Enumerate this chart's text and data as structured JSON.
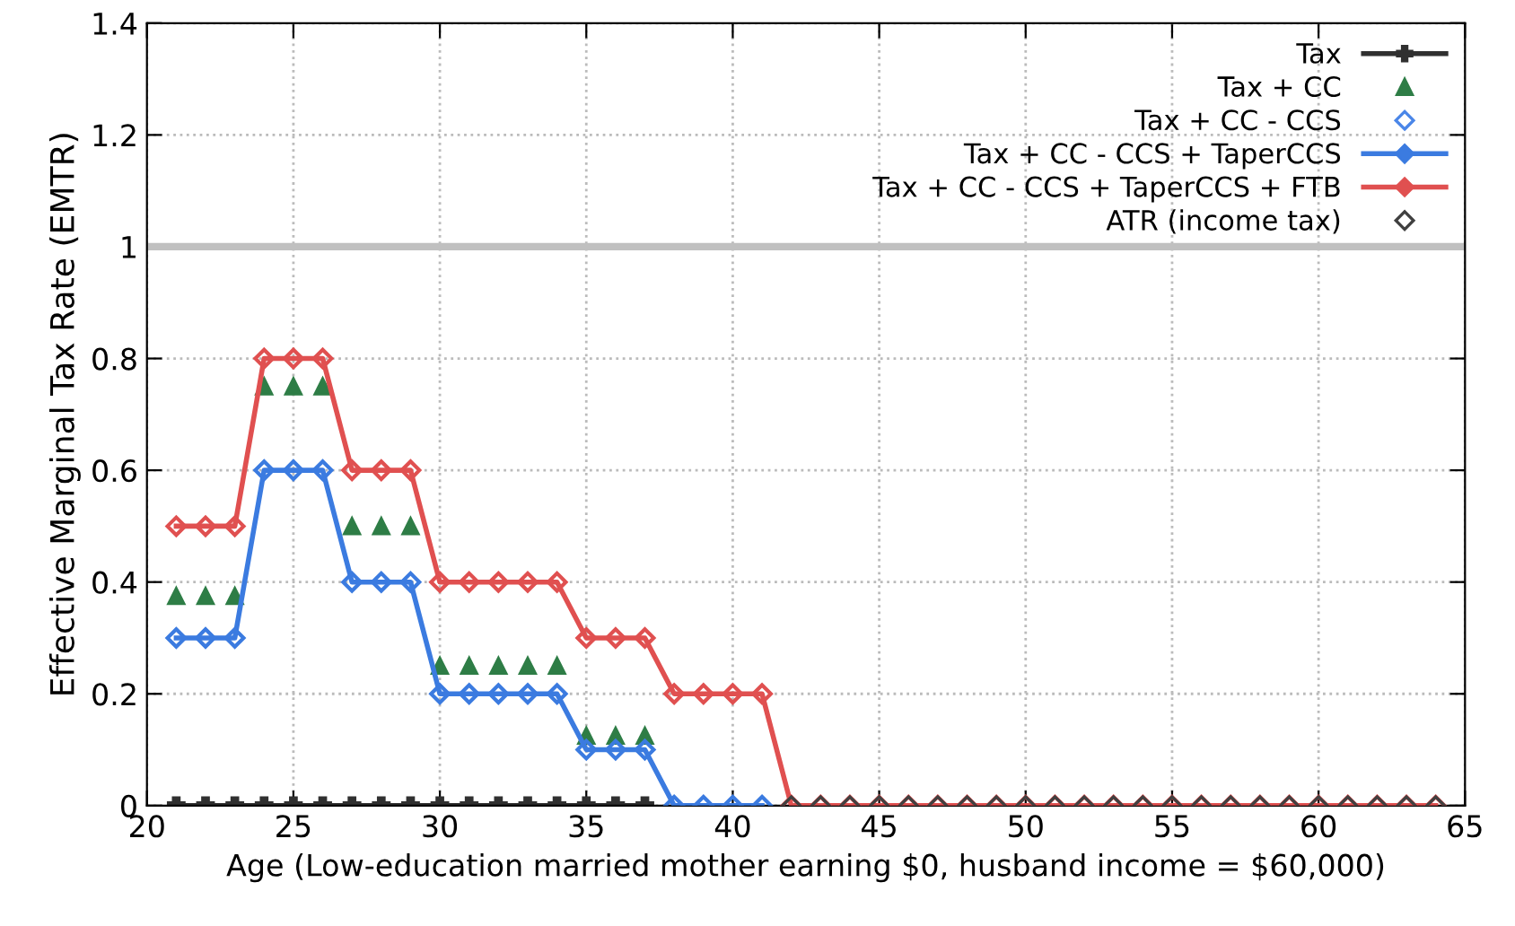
{
  "chart_data": {
    "type": "line",
    "xlabel": "Age (Low-education married mother earning $0, husband income = $60,000)",
    "ylabel": "Effective Marginal Tax Rate (EMTR)",
    "x": [
      21,
      22,
      23,
      24,
      25,
      26,
      27,
      28,
      29,
      30,
      31,
      32,
      33,
      34,
      35,
      36,
      37,
      38,
      39,
      40,
      41,
      42,
      43,
      44,
      45,
      46,
      47,
      48,
      49,
      50,
      51,
      52,
      53,
      54,
      55,
      56,
      57,
      58,
      59,
      60,
      61,
      62,
      63,
      64
    ],
    "series": [
      {
        "name": "Tax",
        "color": "#303030",
        "marker": "cross",
        "values": [
          0,
          0,
          0,
          0,
          0,
          0,
          0,
          0,
          0,
          0,
          0,
          0,
          0,
          0,
          0,
          0,
          0,
          null,
          null,
          null,
          null,
          null,
          null,
          null,
          null,
          null,
          null,
          null,
          null,
          null,
          null,
          null,
          null,
          null,
          null,
          null,
          null,
          null,
          null,
          null,
          null,
          null,
          null,
          null
        ]
      },
      {
        "name": "Tax + CC",
        "color": "#2e7d46",
        "type": "scatter",
        "marker": "triangle",
        "values": [
          0.375,
          0.375,
          0.375,
          0.75,
          0.75,
          0.75,
          0.5,
          0.5,
          0.5,
          0.25,
          0.25,
          0.25,
          0.25,
          0.25,
          0.125,
          0.125,
          0.125,
          null,
          null,
          null,
          null,
          null,
          null,
          null,
          null,
          null,
          null,
          null,
          null,
          null,
          null,
          null,
          null,
          null,
          null,
          null,
          null,
          null,
          null,
          null,
          null,
          null,
          null,
          null
        ]
      },
      {
        "name": "Tax + CC - CCS",
        "color": "#4a86e8",
        "type": "scatter",
        "marker": "diamond",
        "values": [
          null,
          null,
          null,
          null,
          null,
          null,
          null,
          null,
          null,
          null,
          null,
          null,
          null,
          null,
          null,
          null,
          null,
          null,
          null,
          null,
          null,
          null,
          null,
          null,
          null,
          null,
          null,
          null,
          null,
          null,
          null,
          null,
          null,
          null,
          null,
          null,
          null,
          null,
          null,
          null,
          null,
          null,
          null,
          null
        ]
      },
      {
        "name": "Tax + CC - CCS + TaperCCS",
        "color": "#3b7be0",
        "marker": "diamond",
        "values": [
          0.3,
          0.3,
          0.3,
          0.6,
          0.6,
          0.6,
          0.4,
          0.4,
          0.4,
          0.2,
          0.2,
          0.2,
          0.2,
          0.2,
          0.1,
          0.1,
          0.1,
          0,
          0,
          0,
          0,
          null,
          null,
          null,
          null,
          null,
          null,
          null,
          null,
          null,
          null,
          null,
          null,
          null,
          null,
          null,
          null,
          null,
          null,
          null,
          null,
          null,
          null,
          null
        ]
      },
      {
        "name": "Tax + CC - CCS + TaperCCS + FTB",
        "color": "#e05050",
        "marker": "diamond",
        "values": [
          0.5,
          0.5,
          0.5,
          0.8,
          0.8,
          0.8,
          0.6,
          0.6,
          0.6,
          0.4,
          0.4,
          0.4,
          0.4,
          0.4,
          0.3,
          0.3,
          0.3,
          0.2,
          0.2,
          0.2,
          0.2,
          0,
          0,
          0,
          0,
          0,
          0,
          0,
          0,
          0,
          0,
          0,
          0,
          0,
          0,
          0,
          0,
          0,
          0,
          0,
          0,
          0,
          0,
          0
        ]
      },
      {
        "name": "ATR (income tax)",
        "color": "#404040",
        "type": "scatter",
        "marker": "diamond",
        "values": [
          null,
          null,
          null,
          null,
          null,
          null,
          null,
          null,
          null,
          null,
          null,
          null,
          null,
          null,
          null,
          null,
          null,
          null,
          null,
          null,
          null,
          0,
          0,
          0,
          0,
          0,
          0,
          0,
          0,
          0,
          0,
          0,
          0,
          0,
          0,
          0,
          0,
          0,
          0,
          0,
          0,
          0,
          0,
          0
        ]
      }
    ],
    "ref_lines": [
      {
        "axis": "y",
        "value": 1,
        "color": "#c0c0c0"
      }
    ],
    "xlim": [
      20,
      65
    ],
    "xticks": [
      20,
      25,
      30,
      35,
      40,
      45,
      50,
      55,
      60,
      65
    ],
    "ylim": [
      0,
      1.4
    ],
    "yticks": [
      0,
      0.2,
      0.4,
      0.6,
      0.8,
      1,
      1.2,
      1.4
    ],
    "grid": true,
    "legend": "top right"
  }
}
